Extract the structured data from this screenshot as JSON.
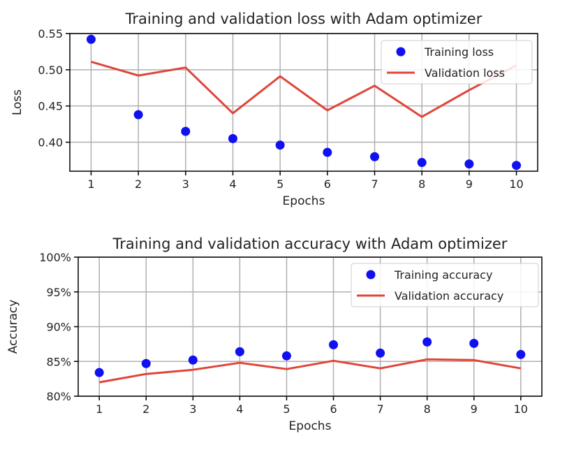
{
  "chart_data": [
    {
      "type": "line",
      "title": "Training and validation loss with Adam optimizer",
      "xlabel": "Epochs",
      "ylabel": "Loss",
      "xlim": [
        0.55,
        10.45
      ],
      "ylim": [
        0.36,
        0.55
      ],
      "grid": true,
      "legend_position": "top-right",
      "x": [
        1,
        2,
        3,
        4,
        5,
        6,
        7,
        8,
        9,
        10
      ],
      "x_tick_labels": [
        "1",
        "2",
        "3",
        "4",
        "5",
        "6",
        "7",
        "8",
        "9",
        "10"
      ],
      "y_ticks": [
        0.4,
        0.45,
        0.5,
        0.55
      ],
      "y_tick_labels": [
        "0.40",
        "0.45",
        "0.50",
        "0.55"
      ],
      "series": [
        {
          "name": "Training loss",
          "style": "points",
          "color": "#1010f0",
          "values": [
            0.542,
            0.438,
            0.415,
            0.405,
            0.396,
            0.386,
            0.38,
            0.372,
            0.37,
            0.368
          ]
        },
        {
          "name": "Validation loss",
          "style": "line",
          "color": "#e0453a",
          "values": [
            0.511,
            0.492,
            0.503,
            0.44,
            0.491,
            0.444,
            0.478,
            0.435,
            0.472,
            0.506
          ]
        }
      ]
    },
    {
      "type": "line",
      "title": "Training and validation accuracy with Adam optimizer",
      "xlabel": "Epochs",
      "ylabel": "Accuracy",
      "xlim": [
        0.55,
        10.45
      ],
      "ylim": [
        0.8,
        1.0
      ],
      "grid": true,
      "legend_position": "top-right",
      "x": [
        1,
        2,
        3,
        4,
        5,
        6,
        7,
        8,
        9,
        10
      ],
      "x_tick_labels": [
        "1",
        "2",
        "3",
        "4",
        "5",
        "6",
        "7",
        "8",
        "9",
        "10"
      ],
      "y_ticks": [
        0.8,
        0.85,
        0.9,
        0.95,
        1.0
      ],
      "y_tick_labels": [
        "80%",
        "85%",
        "90%",
        "95%",
        "100%"
      ],
      "series": [
        {
          "name": "Training accuracy",
          "style": "points",
          "color": "#1010f0",
          "values": [
            0.834,
            0.847,
            0.852,
            0.864,
            0.858,
            0.874,
            0.862,
            0.878,
            0.876,
            0.86
          ]
        },
        {
          "name": "Validation accuracy",
          "style": "line",
          "color": "#e0453a",
          "values": [
            0.82,
            0.832,
            0.838,
            0.848,
            0.839,
            0.851,
            0.84,
            0.853,
            0.852,
            0.84
          ]
        }
      ]
    }
  ]
}
